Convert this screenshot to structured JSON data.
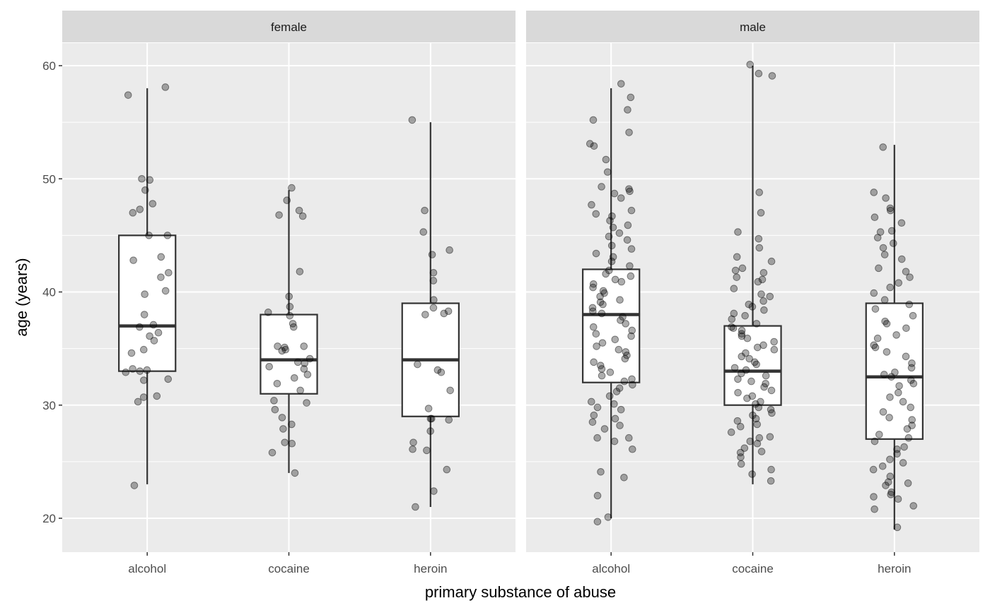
{
  "chart_data": {
    "type": "box",
    "xlabel": "primary substance of abuse",
    "ylabel": "age (years)",
    "ylim": [
      17,
      62
    ],
    "yticks": [
      20,
      30,
      40,
      50,
      60
    ],
    "categories": [
      "alcohol",
      "cocaine",
      "heroin"
    ],
    "grid": true,
    "facets": [
      {
        "name": "female",
        "groups": [
          {
            "category": "alcohol",
            "whisker_low": 23,
            "q1": 33,
            "median": 37,
            "q3": 45,
            "whisker_high": 58,
            "points": [
              58.1,
              57.4,
              49.9,
              50,
              49,
              47.8,
              47,
              47.3,
              45,
              45,
              43.1,
              42.8,
              41.7,
              41.3,
              39.8,
              40.1,
              38,
              37.1,
              36.9,
              36.4,
              36.1,
              35.7,
              34.9,
              34.6,
              33,
              33.1,
              32.9,
              33.2,
              32.2,
              32.3,
              30.8,
              30.3,
              30.7,
              22.9
            ]
          },
          {
            "category": "cocaine",
            "whisker_low": 24,
            "q1": 31,
            "median": 34,
            "q3": 38,
            "whisker_high": 49,
            "points": [
              47.2,
              49.2,
              48.1,
              46.8,
              46.7,
              41.8,
              39.6,
              38.7,
              37.9,
              38.2,
              37.2,
              36.9,
              35.1,
              35.2,
              34.8,
              34.9,
              35.2,
              34.1,
              33.8,
              33.7,
              33.2,
              33.4,
              32.4,
              32.7,
              31.9,
              31.3,
              30.4,
              30.2,
              29.6,
              28.9,
              28.3,
              27.9,
              26.7,
              26.6,
              25.8,
              24
            ]
          },
          {
            "category": "heroin",
            "whisker_low": 21,
            "q1": 29,
            "median": 34,
            "q3": 39,
            "whisker_high": 55,
            "points": [
              55.2,
              47.2,
              45.3,
              43.7,
              43.3,
              41.7,
              41,
              39.3,
              38.6,
              38,
              38.3,
              38.1,
              33.6,
              32.9,
              33.1,
              31.3,
              29.7,
              28.7,
              28.8,
              28.8,
              27.7,
              26.7,
              26.1,
              26,
              24.3,
              22.4,
              21
            ]
          }
        ]
      },
      {
        "name": "male",
        "groups": [
          {
            "category": "alcohol",
            "whisker_low": 20,
            "q1": 32,
            "median": 38,
            "q3": 42,
            "whisker_high": 58,
            "points": [
              58.4,
              57.2,
              56.1,
              55.2,
              54.1,
              53.1,
              52.9,
              51.7,
              50.6,
              49.3,
              49.1,
              48.9,
              48.7,
              48.3,
              47.7,
              47.2,
              46.9,
              46.7,
              46.3,
              45.9,
              45.7,
              45.2,
              44.9,
              44.6,
              44.1,
              43.8,
              43.4,
              43.1,
              42.7,
              42.3,
              41.9,
              41.6,
              41.4,
              41.1,
              40.9,
              40.7,
              40.4,
              40.1,
              39.9,
              39.6,
              39.3,
              39.1,
              38.9,
              38.6,
              38.3,
              38.1,
              37.8,
              37.5,
              37.2,
              36.9,
              36.6,
              36.3,
              36.1,
              35.8,
              35.5,
              35.2,
              34.9,
              34.7,
              34.4,
              34.1,
              33.8,
              33.5,
              33.2,
              32.9,
              32.6,
              32.3,
              32.1,
              31.8,
              31.5,
              31.2,
              30.8,
              30.3,
              30.1,
              29.8,
              29.6,
              29.1,
              28.8,
              28.5,
              28.2,
              27.9,
              27.1,
              27.1,
              26.8,
              26.1,
              24.1,
              23.6,
              22,
              20.1,
              19.7
            ]
          },
          {
            "category": "cocaine",
            "whisker_low": 23,
            "q1": 30,
            "median": 33,
            "q3": 37,
            "whisker_high": 60,
            "points": [
              60.1,
              59.3,
              59.1,
              48.8,
              47,
              45.3,
              44.7,
              43.9,
              43.1,
              42.7,
              42.1,
              41.9,
              41.7,
              41.3,
              41.1,
              40.9,
              40.3,
              39.8,
              39.6,
              39.2,
              38.9,
              38.7,
              38.4,
              38.1,
              37.9,
              37.6,
              37.2,
              36.9,
              36.8,
              36.6,
              36.3,
              36.1,
              35.9,
              35.6,
              35.3,
              35.1,
              34.9,
              34.6,
              34.3,
              34.1,
              33.8,
              33.6,
              33.3,
              33.1,
              32.8,
              32.6,
              32.3,
              32.1,
              31.9,
              31.6,
              31.3,
              31.1,
              30.8,
              30.6,
              30.3,
              30.1,
              29.8,
              29.6,
              29.3,
              29.1,
              28.8,
              28.6,
              28.3,
              28.1,
              27.6,
              27.2,
              27.1,
              26.8,
              26.6,
              26.2,
              25.9,
              25.8,
              25.4,
              24.8,
              24.3,
              23.9,
              23.3
            ]
          },
          {
            "category": "heroin",
            "whisker_low": 19,
            "q1": 27,
            "median": 32.5,
            "q3": 39,
            "whisker_high": 53,
            "points": [
              52.8,
              48.8,
              48.3,
              47.4,
              47.2,
              46.6,
              46.1,
              45.4,
              45.3,
              44.8,
              44.3,
              43.9,
              43.3,
              42.9,
              42.1,
              41.8,
              41.3,
              40.8,
              40.4,
              39.9,
              39.3,
              38.9,
              38.5,
              37.9,
              37.4,
              37.2,
              36.8,
              36.2,
              35.9,
              35.3,
              35.1,
              34.7,
              34.3,
              33.7,
              33.3,
              32.9,
              32.7,
              32.5,
              32.2,
              31.9,
              31.7,
              31.1,
              30.7,
              30.3,
              29.8,
              29.4,
              28.9,
              28.7,
              28.2,
              27.9,
              27.4,
              27.1,
              26.8,
              26.3,
              26.1,
              25.7,
              25.2,
              24.9,
              24.6,
              24.3,
              23.7,
              23.2,
              23.1,
              22.9,
              22.3,
              22.1,
              21.9,
              21.7,
              21.1,
              20.8,
              19.2
            ]
          }
        ]
      }
    ]
  }
}
